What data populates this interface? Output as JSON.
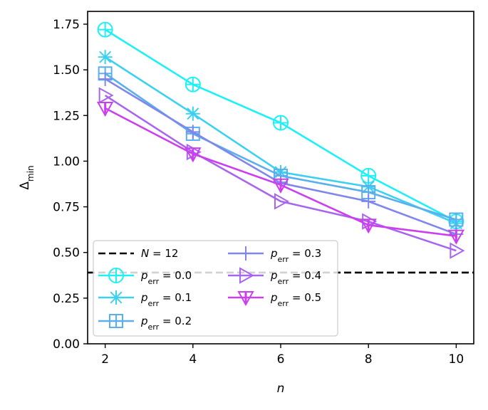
{
  "chart_data": {
    "type": "line",
    "title": "",
    "xlabel": "n",
    "ylabel": "Δ",
    "ylabel_sub": "min",
    "xlim": [
      1.6,
      10.4
    ],
    "ylim": [
      0.0,
      1.82
    ],
    "x_ticks": [
      2,
      4,
      6,
      8,
      10
    ],
    "x_tick_labels": [
      "2",
      "4",
      "6",
      "8",
      "10"
    ],
    "y_ticks": [
      0.0,
      0.25,
      0.5,
      0.75,
      1.0,
      1.25,
      1.5,
      1.75
    ],
    "y_tick_labels": [
      "0.00",
      "0.25",
      "0.50",
      "0.75",
      "1.00",
      "1.25",
      "1.50",
      "1.75"
    ],
    "grid": false,
    "legend_position": "lower-left",
    "x": [
      2,
      4,
      6,
      8,
      10
    ],
    "reference_line": {
      "name": "N = 12",
      "label_main": "N",
      "label_rest": " = 12",
      "value": 0.39,
      "color": "#000000",
      "style": "dashed"
    },
    "series": [
      {
        "name": "p_err = 0.0",
        "label_main": "p",
        "label_sub": "err",
        "label_rest": " = 0.0",
        "marker": "circle-plus",
        "color": "#1ef0f5",
        "values": [
          1.72,
          1.42,
          1.21,
          0.92,
          0.67
        ]
      },
      {
        "name": "p_err = 0.1",
        "label_main": "p",
        "label_sub": "err",
        "label_rest": " = 0.1",
        "marker": "x-plus",
        "color": "#3dd0f0",
        "values": [
          1.57,
          1.26,
          0.94,
          0.86,
          0.66
        ]
      },
      {
        "name": "p_err = 0.2",
        "label_main": "p",
        "label_sub": "err",
        "label_rest": " = 0.2",
        "marker": "square-plus",
        "color": "#5aafec",
        "values": [
          1.48,
          1.15,
          0.92,
          0.83,
          0.68
        ]
      },
      {
        "name": "p_err = 0.3",
        "label_main": "p",
        "label_sub": "err",
        "label_rest": " = 0.3",
        "marker": "plus",
        "color": "#7f87ec",
        "values": [
          1.45,
          1.16,
          0.88,
          0.78,
          0.6
        ]
      },
      {
        "name": "p_err = 0.4",
        "label_main": "p",
        "label_sub": "err",
        "label_rest": " = 0.4",
        "marker": "triangle-right",
        "color": "#a865ee",
        "values": [
          1.36,
          1.05,
          0.78,
          0.67,
          0.51
        ]
      },
      {
        "name": "p_err = 0.5",
        "label_main": "p",
        "label_sub": "err",
        "label_rest": " = 0.5",
        "marker": "triangle-down",
        "color": "#cc3fee",
        "values": [
          1.29,
          1.04,
          0.87,
          0.65,
          0.59
        ]
      }
    ]
  }
}
